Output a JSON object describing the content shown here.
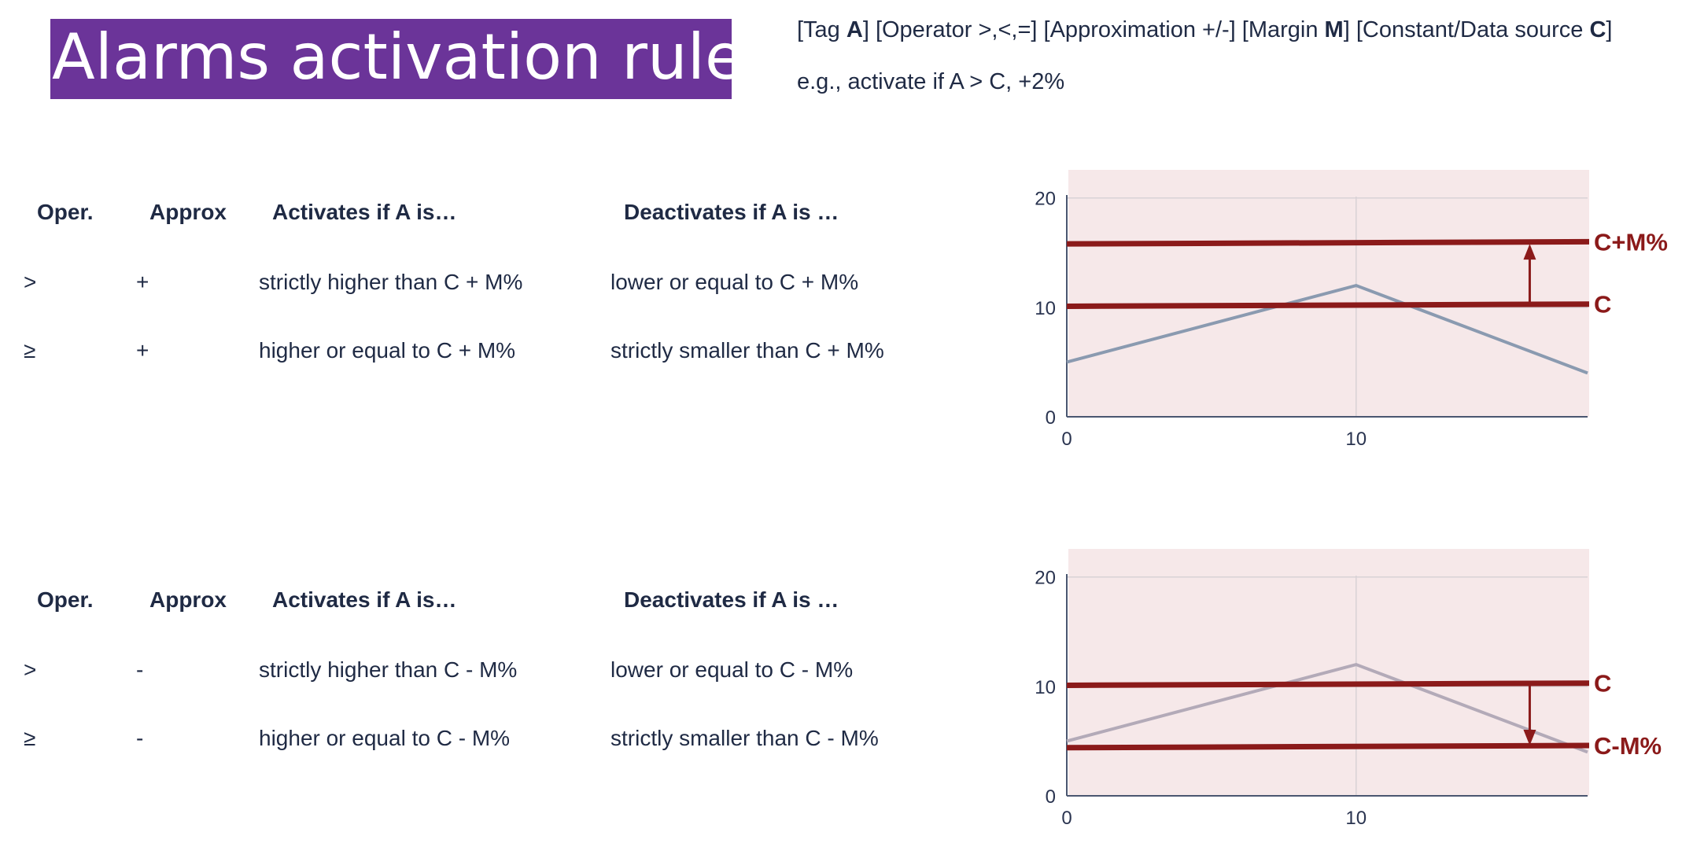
{
  "title": "Alarms activation rules",
  "syntax": {
    "line1_parts": [
      {
        "text": "[Tag ",
        "bold": false
      },
      {
        "text": "A",
        "bold": true
      },
      {
        "text": "] [Operator >,<,=] [Approximation +/-] [Margin ",
        "bold": false
      },
      {
        "text": "M",
        "bold": true
      },
      {
        "text": "] [Constant/Data source ",
        "bold": false
      },
      {
        "text": "C",
        "bold": true
      },
      {
        "text": "]",
        "bold": false
      }
    ],
    "example": "e.g., activate if A > C, +2%"
  },
  "tables": [
    {
      "headers": [
        "Oper.",
        "Approx",
        "Activates if A is…",
        "Deactivates if A is …"
      ],
      "rows": [
        [
          ">",
          "+",
          "strictly higher than C + M%",
          "lower or equal to C + M%"
        ],
        [
          "≥",
          "+",
          "higher or equal to C + M%",
          "strictly smaller than C + M%"
        ]
      ]
    },
    {
      "headers": [
        "Oper.",
        "Approx",
        "Activates if A is…",
        "Deactivates if A is …"
      ],
      "rows": [
        [
          ">",
          "-",
          "strictly higher than C - M%",
          "lower or equal to C - M%"
        ],
        [
          "≥",
          "-",
          "higher or equal to C - M%",
          "strictly smaller than C - M%"
        ]
      ]
    }
  ],
  "chart_data": [
    {
      "type": "line",
      "xticks": [
        "0",
        "10"
      ],
      "yticks": [
        "0",
        "10",
        "20"
      ],
      "xlim": [
        0,
        18
      ],
      "ylim": [
        0,
        23
      ],
      "series": [
        {
          "x": [
            0,
            10,
            18
          ],
          "values": [
            5,
            12,
            4
          ],
          "color": "#8a9ab0"
        }
      ],
      "thresholds": [
        {
          "label": "C+M%",
          "y0": 15.8,
          "y1": 16.0
        },
        {
          "label": "C",
          "y0": 10.1,
          "y1": 10.3
        }
      ],
      "arrow": {
        "x": 16,
        "from": 10.3,
        "to": 15.8,
        "direction": "up"
      },
      "accent": "#8b1a1a",
      "band": "#f6e8e9"
    },
    {
      "type": "line",
      "xticks": [
        "0",
        "10"
      ],
      "yticks": [
        "0",
        "10",
        "20"
      ],
      "xlim": [
        0,
        18
      ],
      "ylim": [
        0,
        23
      ],
      "series": [
        {
          "x": [
            0,
            10,
            18
          ],
          "values": [
            5,
            12,
            4
          ],
          "color": "#b3aab8"
        }
      ],
      "thresholds": [
        {
          "label": "C",
          "y0": 10.1,
          "y1": 10.3
        },
        {
          "label": "C-M%",
          "y0": 4.4,
          "y1": 4.6
        }
      ],
      "arrow": {
        "x": 16,
        "from": 10.1,
        "to": 4.6,
        "direction": "down"
      },
      "accent": "#8b1a1a",
      "band": "#f6e8e9"
    }
  ]
}
